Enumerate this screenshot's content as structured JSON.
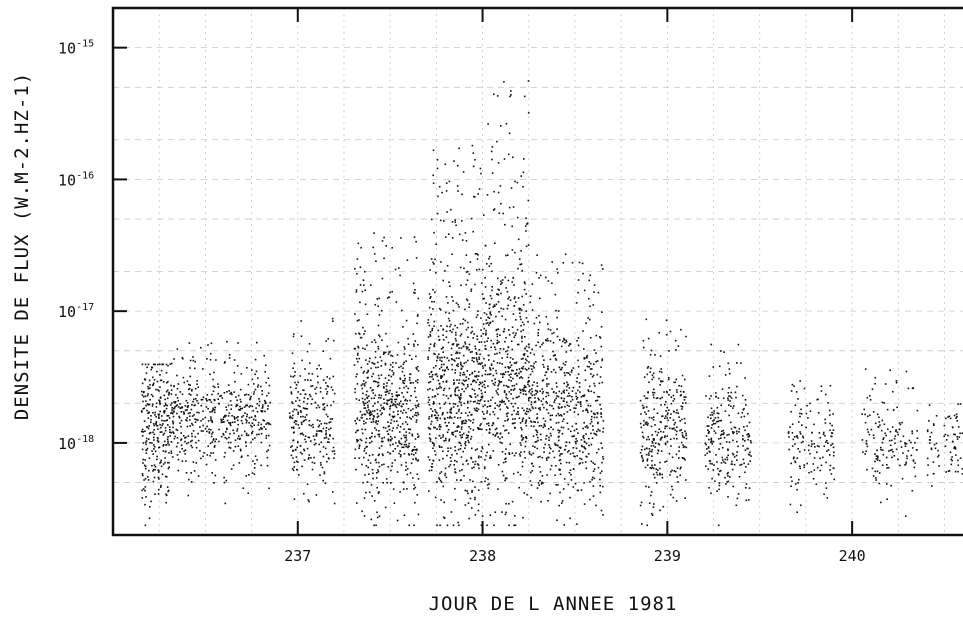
{
  "chart_data": {
    "type": "scatter",
    "title": "",
    "xlabel": "JOUR DE L ANNEE 1981",
    "ylabel": "DENSITE DE FLUX (W.M-2.HZ-1)",
    "x_scale": "linear",
    "y_scale": "log",
    "xlim": [
      236.0,
      240.6
    ],
    "ylim": [
      2e-19,
      2e-15
    ],
    "grid": true,
    "x_ticks": [
      237,
      238,
      239,
      240
    ],
    "x_tick_labels": [
      "237",
      "238",
      "239",
      "240"
    ],
    "y_ticks": [
      1e-18,
      1e-17,
      1e-16,
      1e-15
    ],
    "y_tick_labels": [
      {
        "mantissa": "10",
        "exponent": "-18"
      },
      {
        "mantissa": "10",
        "exponent": "-17"
      },
      {
        "mantissa": "10",
        "exponent": "-16"
      },
      {
        "mantissa": "10",
        "exponent": "-15"
      }
    ],
    "clusters": [
      {
        "day_start": 236.15,
        "day_end": 236.3,
        "median": 1.2e-18,
        "spread": 0.28,
        "peak": 4e-18,
        "count": 260
      },
      {
        "day_start": 236.3,
        "day_end": 236.85,
        "median": 1.5e-18,
        "spread": 0.2,
        "peak": 6e-18,
        "count": 520
      },
      {
        "day_start": 236.95,
        "day_end": 237.2,
        "median": 1.3e-18,
        "spread": 0.25,
        "peak": 1e-17,
        "count": 260
      },
      {
        "day_start": 237.3,
        "day_end": 237.65,
        "median": 1.5e-18,
        "spread": 0.33,
        "peak": 4e-17,
        "count": 620
      },
      {
        "day_start": 237.7,
        "day_end": 238.0,
        "median": 2.2e-18,
        "spread": 0.42,
        "peak": 2e-16,
        "count": 700
      },
      {
        "day_start": 238.0,
        "day_end": 238.25,
        "median": 2.5e-18,
        "spread": 0.45,
        "peak": 6e-16,
        "count": 560
      },
      {
        "day_start": 238.25,
        "day_end": 238.65,
        "median": 1.6e-18,
        "spread": 0.32,
        "peak": 3e-17,
        "count": 600
      },
      {
        "day_start": 238.85,
        "day_end": 239.1,
        "median": 1.2e-18,
        "spread": 0.25,
        "peak": 9e-18,
        "count": 300
      },
      {
        "day_start": 239.2,
        "day_end": 239.45,
        "median": 1e-18,
        "spread": 0.22,
        "peak": 7e-18,
        "count": 230
      },
      {
        "day_start": 239.65,
        "day_end": 239.9,
        "median": 9e-19,
        "spread": 0.18,
        "peak": 3e-18,
        "count": 140
      },
      {
        "day_start": 240.05,
        "day_end": 240.35,
        "median": 1e-18,
        "spread": 0.18,
        "peak": 4e-18,
        "count": 150
      },
      {
        "day_start": 240.4,
        "day_end": 240.6,
        "median": 1e-18,
        "spread": 0.15,
        "peak": 2e-18,
        "count": 80
      }
    ]
  }
}
